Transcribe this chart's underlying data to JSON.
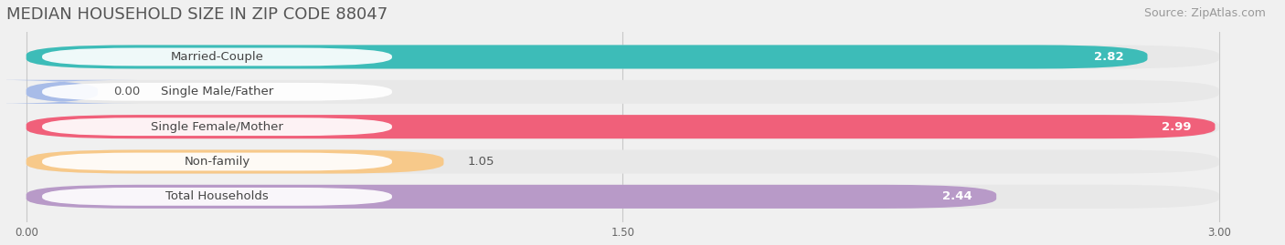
{
  "title": "MEDIAN HOUSEHOLD SIZE IN ZIP CODE 88047",
  "source": "Source: ZipAtlas.com",
  "categories": [
    "Married-Couple",
    "Single Male/Father",
    "Single Female/Mother",
    "Non-family",
    "Total Households"
  ],
  "values": [
    2.82,
    0.0,
    2.99,
    1.05,
    2.44
  ],
  "bar_colors": [
    "#3dbcb8",
    "#a8bce8",
    "#f0607a",
    "#f7c98a",
    "#b89ac8"
  ],
  "background_color": "#f0f0f0",
  "bar_bg_color": "#e8e8e8",
  "xlim": [
    0,
    3.0
  ],
  "xticks": [
    0.0,
    1.5,
    3.0
  ],
  "xtick_labels": [
    "0.00",
    "1.50",
    "3.00"
  ],
  "title_fontsize": 13,
  "source_fontsize": 9,
  "label_fontsize": 9.5,
  "value_fontsize": 9.5,
  "bar_height": 0.68,
  "rounding_size": 0.28
}
